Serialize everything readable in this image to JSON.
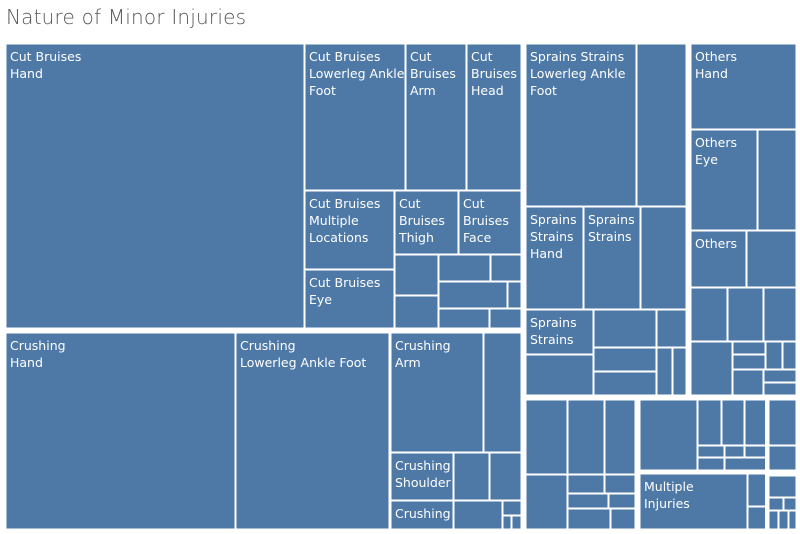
{
  "title": "Nature of Minor Injuries",
  "colors": {
    "fill": "#4e79a7",
    "cell_border": "#ffffff",
    "title": "#555555",
    "label": "#ffffff"
  },
  "chart_data": {
    "type": "treemap",
    "title": "Nature of Minor Injuries",
    "groups": [
      {
        "name": "Cut Bruises",
        "labeled_cells": [
          [
            "Cut Bruises",
            "Hand"
          ],
          [
            "Cut Bruises",
            "Lowerleg Ankle",
            "Foot"
          ],
          [
            "Cut",
            "Bruises",
            "Arm"
          ],
          [
            "Cut",
            "Bruises",
            "Head"
          ],
          [
            "Cut Bruises",
            "Multiple",
            "Locations"
          ],
          [
            "Cut",
            "Bruises",
            "Thigh"
          ],
          [
            "Cut",
            "Bruises",
            "Face"
          ],
          [
            "Cut Bruises",
            "Eye"
          ]
        ]
      },
      {
        "name": "Crushing",
        "labeled_cells": [
          [
            "Crushing",
            "Hand"
          ],
          [
            "Crushing",
            "Lowerleg Ankle Foot"
          ],
          [
            "Crushing",
            "Arm"
          ],
          [
            "Crushing",
            "Shoulder"
          ],
          [
            "Crushing"
          ]
        ]
      },
      {
        "name": "Sprains Strains",
        "labeled_cells": [
          [
            "Sprains Strains",
            "Lowerleg Ankle",
            "Foot"
          ],
          [
            "Sprains",
            "Strains",
            "Hand"
          ],
          [
            "Sprains",
            "Strains"
          ],
          [
            "Sprains",
            "Strains"
          ]
        ]
      },
      {
        "name": "Others",
        "labeled_cells": [
          [
            "Others",
            "Hand"
          ],
          [
            "Others",
            "Eye"
          ],
          [
            "Others"
          ]
        ]
      },
      {
        "name": "Multiple Injuries",
        "labeled_cells": [
          [
            "Multiple",
            "Injuries"
          ]
        ]
      }
    ]
  }
}
